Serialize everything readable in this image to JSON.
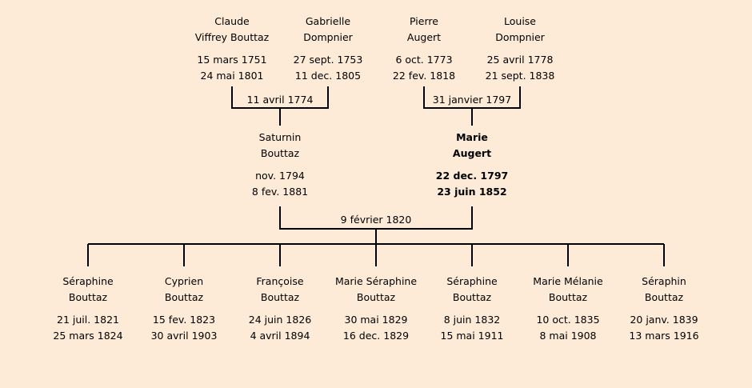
{
  "colors": {
    "background": "#fdebd7",
    "lines": "#000000"
  },
  "grandparents": [
    {
      "first": "Claude",
      "last": "Viffrey Bouttaz",
      "birth": "15 mars 1751",
      "death": "24 mai 1801"
    },
    {
      "first": "Gabrielle",
      "last": "Dompnier",
      "birth": "27 sept. 1753",
      "death": "11 dec. 1805"
    },
    {
      "first": "Pierre",
      "last": "Augert",
      "birth": "6 oct. 1773",
      "death": "22 fev. 1818"
    },
    {
      "first": "Louise",
      "last": "Dompnier",
      "birth": "25 avril 1778",
      "death": "21 sept. 1838"
    }
  ],
  "grandparent_marriages": [
    "11 avril 1774",
    "31 janvier 1797"
  ],
  "parents": [
    {
      "first": "Saturnin",
      "last": "Bouttaz",
      "birth": "nov. 1794",
      "death": "8 fev. 1881"
    },
    {
      "first": "Marie",
      "last": "Augert",
      "birth": "22 dec. 1797",
      "death": "23 juin 1852",
      "highlighted": true
    }
  ],
  "parent_marriage": "9 février 1820",
  "children": [
    {
      "first": "Séraphine",
      "last": "Bouttaz",
      "birth": "21 juil. 1821",
      "death": "25 mars 1824"
    },
    {
      "first": "Cyprien",
      "last": "Bouttaz",
      "birth": "15 fev. 1823",
      "death": "30 avril 1903"
    },
    {
      "first": "Françoise",
      "last": "Bouttaz",
      "birth": "24 juin 1826",
      "death": "4 avril 1894"
    },
    {
      "first": "Marie Séraphine",
      "last": "Bouttaz",
      "birth": "30 mai 1829",
      "death": "16 dec. 1829"
    },
    {
      "first": "Séraphine",
      "last": "Bouttaz",
      "birth": "8 juin 1832",
      "death": "15 mai 1911"
    },
    {
      "first": "Marie Mélanie",
      "last": "Bouttaz",
      "birth": "10 oct. 1835",
      "death": "8 mai 1908"
    },
    {
      "first": "Séraphin",
      "last": "Bouttaz",
      "birth": "20 janv. 1839",
      "death": "13 mars 1916"
    }
  ]
}
